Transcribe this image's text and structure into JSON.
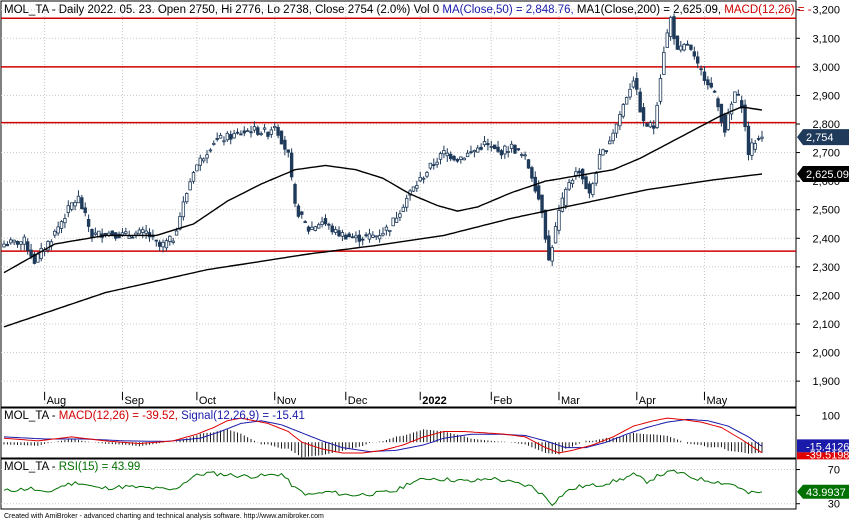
{
  "header": {
    "symbol": "MOL_TA",
    "prefix": " - Daily 2022. 05. 23. Open 2750, Hi 2776, Lo 2738, Close 2754 (2.0%) Vol 0 ",
    "ma50": "MA(Close,50) = 2,848.76,",
    "ma200": " MA1(Close,200) = 2,625.09,",
    "macd": " MACD(12,26) = -"
  },
  "macd_header": {
    "symbol": "MOL_TA - ",
    "macd": "MACD(12,26) = -39.52,",
    "signal": " Signal(12,26,9) = -15.41"
  },
  "rsi_header": {
    "symbol": "MOL_TA - ",
    "rsi": "RSI(15) = 43.99"
  },
  "footer": "Created with AmiBroker - advanced charting and technical analysis software. http://www.amibroker.com",
  "colors": {
    "candle": "#1f3a5a",
    "ma": "#000000",
    "hline": "#d00000",
    "macd": "#e00000",
    "signal": "#1a1aaa",
    "hist": "#000000",
    "rsi": "#007000",
    "grid": "#c8c8c8"
  },
  "chart_data": [
    {
      "type": "candlestick",
      "title": "MOL_TA - Daily 2022. 05. 23. Open 2750, Hi 2776, Lo 2738, Close 2754 (2.0%) Vol 0",
      "ylim": [
        1820,
        3220
      ],
      "yticks": [
        1900,
        2000,
        2100,
        2200,
        2300,
        2400,
        2500,
        2600,
        2700,
        2800,
        2900,
        3000,
        3100,
        3200
      ],
      "ytick_labels": [
        "1,900",
        "2,000",
        "2,100",
        "2,200",
        "2,300",
        "2,400",
        "2,500",
        "2,600",
        "2,700",
        "2,800",
        "2,900",
        "3,000",
        "3,100",
        "3,200"
      ],
      "months": [
        "Aug",
        "Sep",
        "Oct",
        "Nov",
        "Dec",
        "2022",
        "Feb",
        "Mar",
        "Apr",
        "May"
      ],
      "month_start_index": [
        12,
        35,
        57,
        80,
        101,
        123,
        144,
        164,
        187,
        207
      ],
      "total_bars": 225,
      "last_bar": {
        "open": 2750,
        "high": 2776,
        "low": 2738,
        "close": 2754
      },
      "horizontal_lines": [
        3170,
        3000,
        2805,
        2355
      ],
      "close_anchors": [
        [
          0,
          2380
        ],
        [
          6,
          2390
        ],
        [
          9,
          2320
        ],
        [
          14,
          2400
        ],
        [
          20,
          2520
        ],
        [
          22,
          2540
        ],
        [
          26,
          2410
        ],
        [
          30,
          2420
        ],
        [
          36,
          2410
        ],
        [
          42,
          2420
        ],
        [
          46,
          2370
        ],
        [
          50,
          2400
        ],
        [
          56,
          2640
        ],
        [
          62,
          2740
        ],
        [
          68,
          2760
        ],
        [
          73,
          2780
        ],
        [
          78,
          2770
        ],
        [
          80,
          2800
        ],
        [
          84,
          2690
        ],
        [
          86,
          2510
        ],
        [
          90,
          2430
        ],
        [
          94,
          2460
        ],
        [
          98,
          2420
        ],
        [
          104,
          2400
        ],
        [
          110,
          2410
        ],
        [
          114,
          2440
        ],
        [
          120,
          2560
        ],
        [
          126,
          2650
        ],
        [
          130,
          2700
        ],
        [
          134,
          2680
        ],
        [
          138,
          2700
        ],
        [
          142,
          2730
        ],
        [
          146,
          2700
        ],
        [
          150,
          2720
        ],
        [
          154,
          2680
        ],
        [
          156,
          2620
        ],
        [
          159,
          2500
        ],
        [
          161,
          2320
        ],
        [
          164,
          2490
        ],
        [
          167,
          2600
        ],
        [
          170,
          2640
        ],
        [
          173,
          2550
        ],
        [
          176,
          2680
        ],
        [
          178,
          2720
        ],
        [
          181,
          2800
        ],
        [
          184,
          2900
        ],
        [
          186,
          2960
        ],
        [
          189,
          2800
        ],
        [
          192,
          2790
        ],
        [
          195,
          3060
        ],
        [
          197,
          3170
        ],
        [
          199,
          3050
        ],
        [
          202,
          3080
        ],
        [
          205,
          3000
        ],
        [
          208,
          2950
        ],
        [
          210,
          2900
        ],
        [
          213,
          2780
        ],
        [
          216,
          2910
        ],
        [
          218,
          2870
        ],
        [
          220,
          2700
        ],
        [
          222,
          2740
        ],
        [
          224,
          2754
        ]
      ],
      "ma50_anchors": [
        [
          0,
          2280
        ],
        [
          15,
          2380
        ],
        [
          30,
          2410
        ],
        [
          45,
          2410
        ],
        [
          56,
          2450
        ],
        [
          66,
          2530
        ],
        [
          76,
          2590
        ],
        [
          86,
          2640
        ],
        [
          95,
          2655
        ],
        [
          104,
          2640
        ],
        [
          112,
          2610
        ],
        [
          120,
          2555
        ],
        [
          128,
          2515
        ],
        [
          134,
          2495
        ],
        [
          140,
          2510
        ],
        [
          150,
          2560
        ],
        [
          160,
          2600
        ],
        [
          170,
          2620
        ],
        [
          180,
          2640
        ],
        [
          188,
          2680
        ],
        [
          196,
          2730
        ],
        [
          204,
          2780
        ],
        [
          212,
          2830
        ],
        [
          218,
          2860
        ],
        [
          224,
          2848.76
        ]
      ],
      "ma200_anchors": [
        [
          0,
          2090
        ],
        [
          30,
          2210
        ],
        [
          60,
          2290
        ],
        [
          90,
          2345
        ],
        [
          110,
          2375
        ],
        [
          130,
          2410
        ],
        [
          150,
          2470
        ],
        [
          170,
          2520
        ],
        [
          190,
          2570
        ],
        [
          210,
          2605
        ],
        [
          224,
          2625.09
        ]
      ],
      "price_tags": [
        {
          "value": 2754,
          "label": "2,754"
        },
        {
          "value": 2625.09,
          "label": "2,625.09"
        }
      ]
    },
    {
      "type": "line",
      "title": "MOL_TA - MACD(12,26) = -39.52, Signal(12,26,9) = -15.41",
      "ylim": [
        -55,
        120
      ],
      "yticks": [
        100
      ],
      "ytick_labels": [
        "100"
      ],
      "macd_anchors": [
        [
          0,
          15
        ],
        [
          10,
          5
        ],
        [
          20,
          20
        ],
        [
          30,
          5
        ],
        [
          40,
          -5
        ],
        [
          50,
          5
        ],
        [
          57,
          30
        ],
        [
          62,
          55
        ],
        [
          66,
          80
        ],
        [
          70,
          90
        ],
        [
          78,
          70
        ],
        [
          84,
          40
        ],
        [
          88,
          0
        ],
        [
          94,
          -25
        ],
        [
          100,
          -40
        ],
        [
          106,
          -40
        ],
        [
          112,
          -30
        ],
        [
          118,
          -10
        ],
        [
          124,
          20
        ],
        [
          130,
          40
        ],
        [
          136,
          40
        ],
        [
          142,
          35
        ],
        [
          148,
          30
        ],
        [
          154,
          20
        ],
        [
          160,
          -20
        ],
        [
          164,
          -40
        ],
        [
          168,
          -30
        ],
        [
          174,
          -10
        ],
        [
          180,
          20
        ],
        [
          186,
          60
        ],
        [
          192,
          80
        ],
        [
          196,
          90
        ],
        [
          200,
          85
        ],
        [
          206,
          75
        ],
        [
          212,
          55
        ],
        [
          218,
          10
        ],
        [
          224,
          -39.52
        ]
      ],
      "signal_anchors": [
        [
          0,
          20
        ],
        [
          12,
          12
        ],
        [
          24,
          12
        ],
        [
          36,
          5
        ],
        [
          48,
          3
        ],
        [
          58,
          15
        ],
        [
          64,
          40
        ],
        [
          70,
          70
        ],
        [
          76,
          80
        ],
        [
          82,
          65
        ],
        [
          88,
          35
        ],
        [
          94,
          5
        ],
        [
          100,
          -20
        ],
        [
          108,
          -35
        ],
        [
          116,
          -30
        ],
        [
          124,
          -10
        ],
        [
          130,
          15
        ],
        [
          138,
          30
        ],
        [
          146,
          30
        ],
        [
          154,
          25
        ],
        [
          160,
          5
        ],
        [
          166,
          -20
        ],
        [
          172,
          -20
        ],
        [
          178,
          0
        ],
        [
          184,
          30
        ],
        [
          190,
          55
        ],
        [
          196,
          75
        ],
        [
          202,
          85
        ],
        [
          208,
          80
        ],
        [
          214,
          60
        ],
        [
          220,
          20
        ],
        [
          224,
          -15.41
        ]
      ],
      "value_tags": [
        {
          "value": -15.41,
          "label": "-15.4126"
        },
        {
          "value": -39.52,
          "label": "-39.5198"
        }
      ]
    },
    {
      "type": "line",
      "title": "MOL_TA - RSI(15) = 43.99",
      "ylim": [
        25,
        80
      ],
      "yticks": [
        30,
        70
      ],
      "ytick_labels": [
        "30",
        "70"
      ],
      "rsi_anchors": [
        [
          0,
          45
        ],
        [
          8,
          48
        ],
        [
          12,
          42
        ],
        [
          18,
          52
        ],
        [
          22,
          55
        ],
        [
          28,
          48
        ],
        [
          36,
          50
        ],
        [
          44,
          48
        ],
        [
          50,
          46
        ],
        [
          56,
          62
        ],
        [
          60,
          66
        ],
        [
          66,
          64
        ],
        [
          72,
          62
        ],
        [
          78,
          63
        ],
        [
          82,
          65
        ],
        [
          86,
          48
        ],
        [
          90,
          40
        ],
        [
          96,
          44
        ],
        [
          102,
          40
        ],
        [
          110,
          42
        ],
        [
          116,
          45
        ],
        [
          120,
          55
        ],
        [
          126,
          60
        ],
        [
          132,
          58
        ],
        [
          138,
          56
        ],
        [
          144,
          60
        ],
        [
          150,
          55
        ],
        [
          156,
          50
        ],
        [
          160,
          38
        ],
        [
          162,
          30
        ],
        [
          166,
          44
        ],
        [
          170,
          50
        ],
        [
          176,
          52
        ],
        [
          182,
          58
        ],
        [
          186,
          64
        ],
        [
          190,
          56
        ],
        [
          194,
          64
        ],
        [
          198,
          68
        ],
        [
          204,
          60
        ],
        [
          210,
          56
        ],
        [
          216,
          52
        ],
        [
          220,
          42
        ],
        [
          224,
          43.99
        ]
      ],
      "value_tags": [
        {
          "value": 43.99,
          "label": "43.9937"
        }
      ]
    }
  ]
}
